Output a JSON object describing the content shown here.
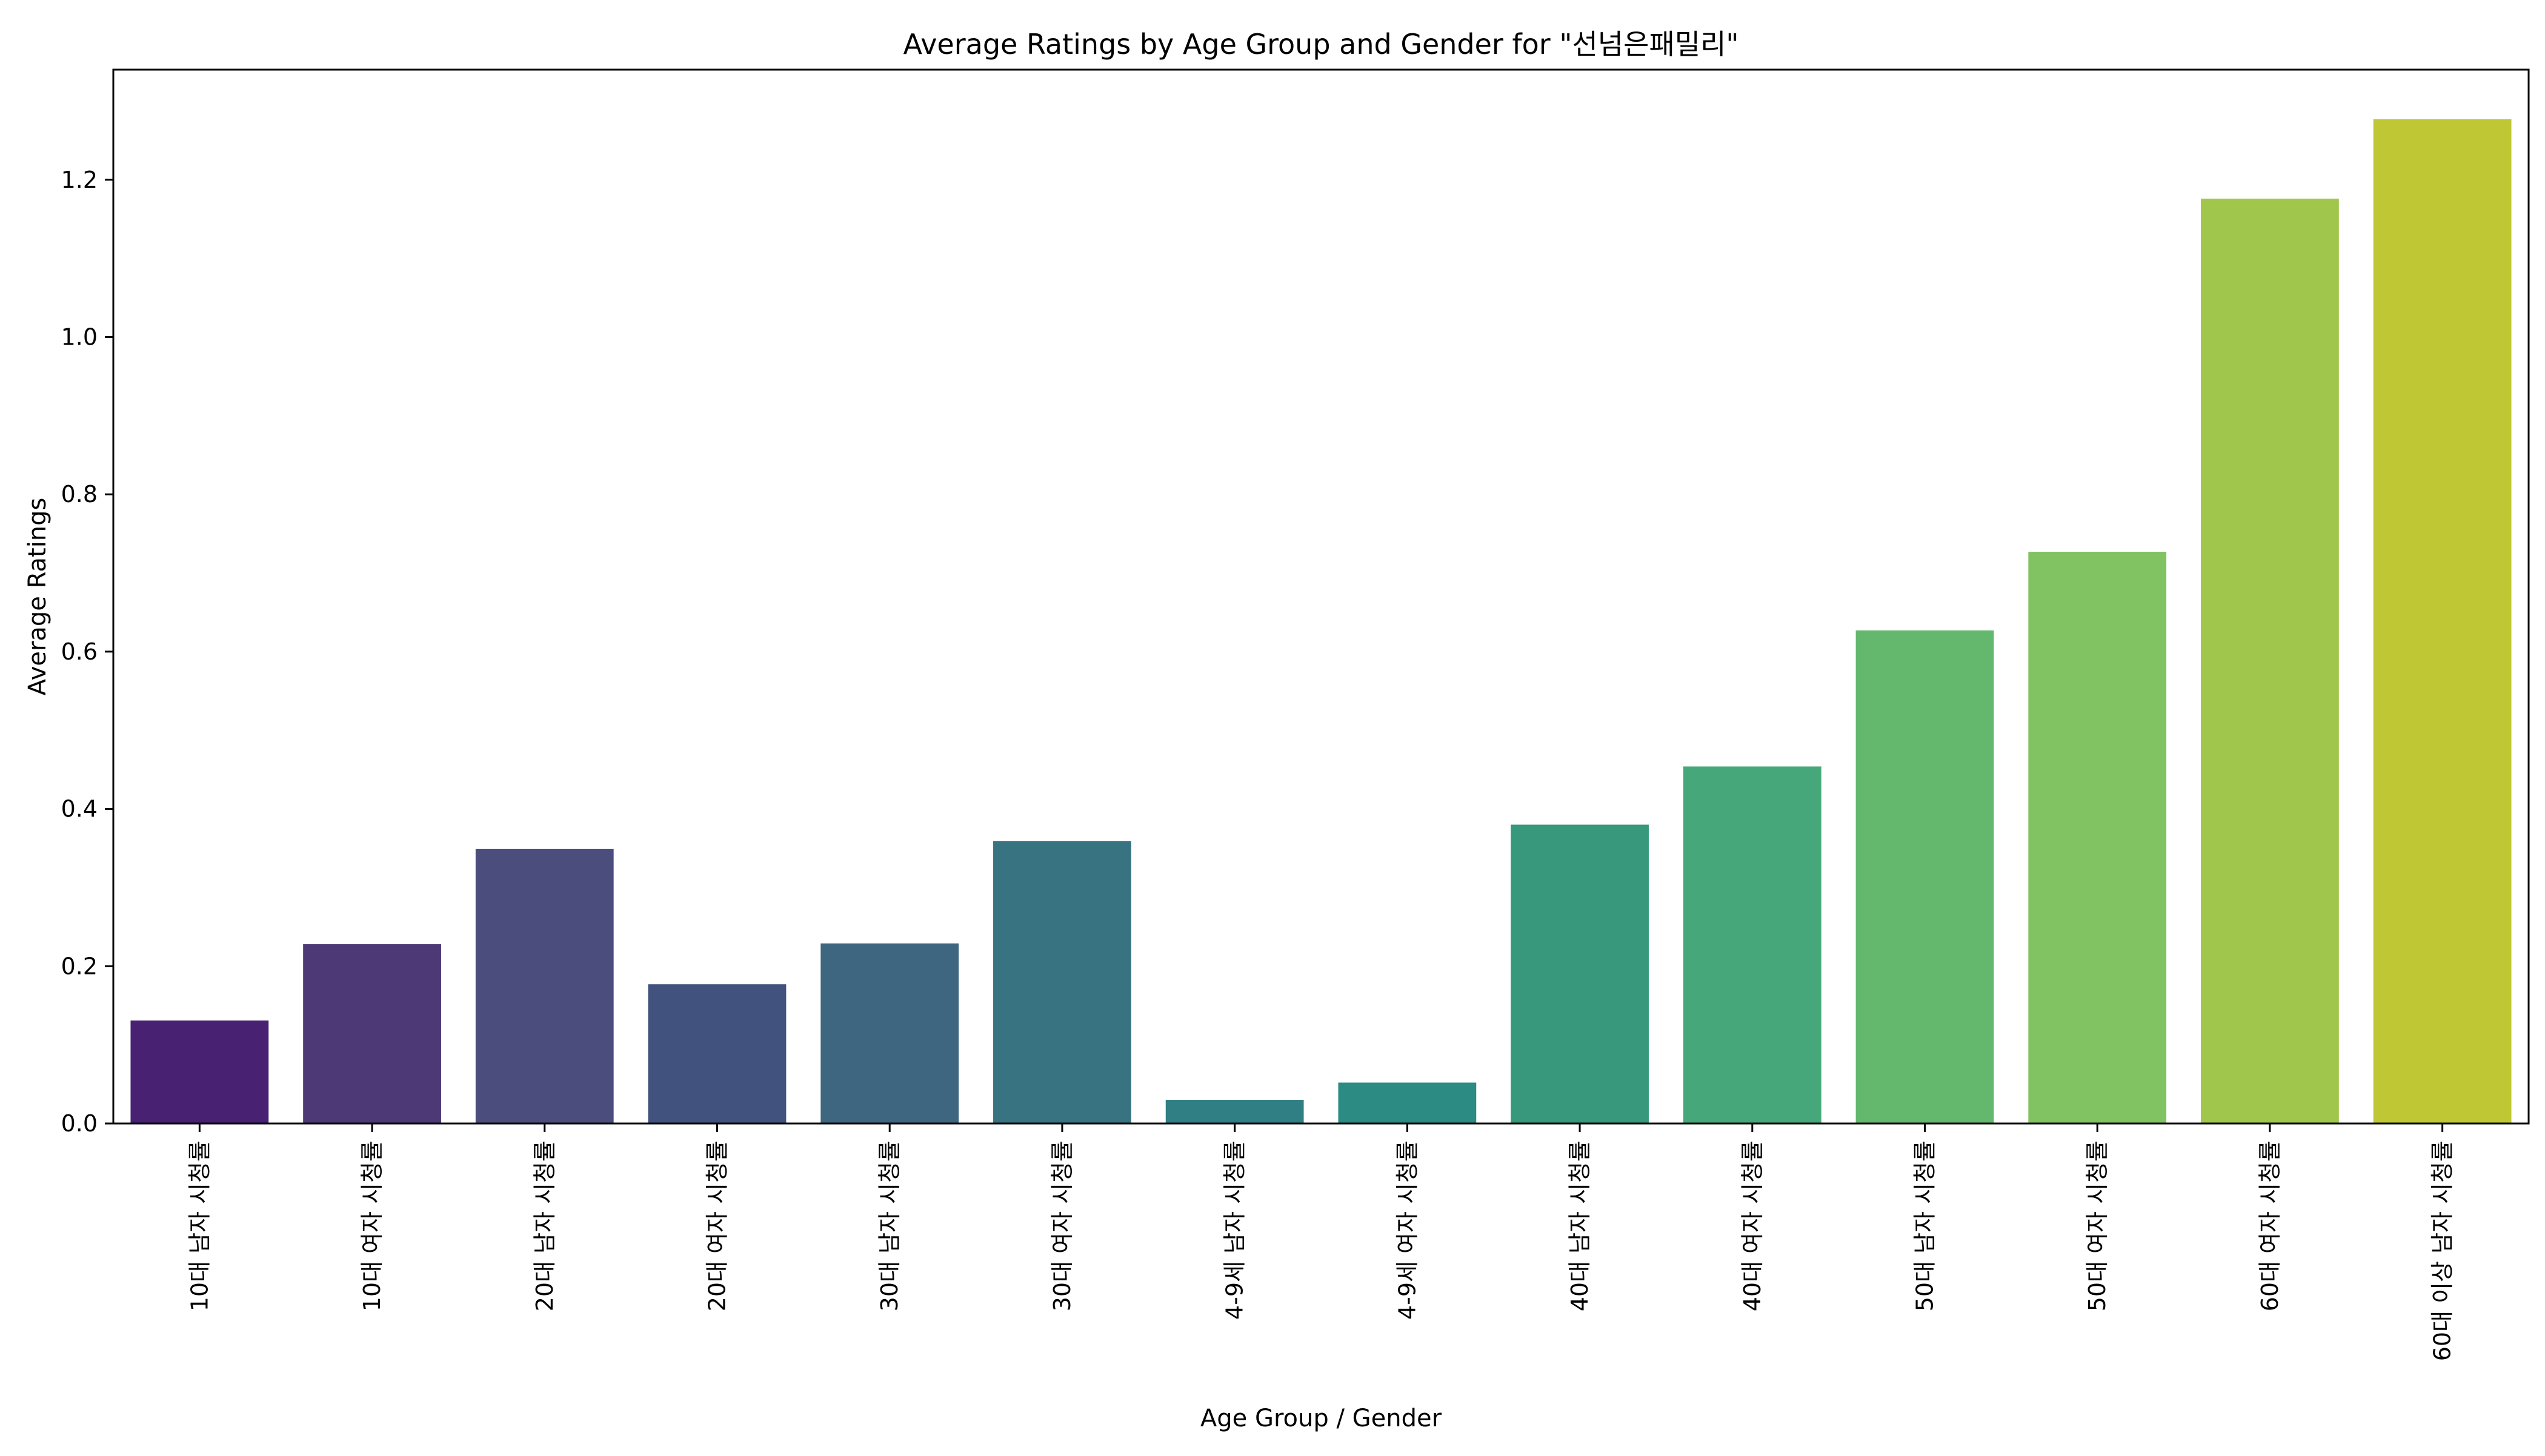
{
  "chart_data": {
    "type": "bar",
    "title": "Average Ratings by Age Group and Gender for \"선넘은패밀리\"",
    "xlabel": "Age Group / Gender",
    "ylabel": "Average Ratings",
    "categories": [
      "10대 남자 시청률",
      "10대 여자 시청률",
      "20대 남자 시청률",
      "20대 여자 시청률",
      "30대 남자 시청률",
      "30대 여자 시청률",
      "4-9세 남자 시청률",
      "4-9세 여자 시청률",
      "40대 남자 시청률",
      "40대 여자 시청률",
      "50대 남자 시청률",
      "50대 여자 시청률",
      "60대 여자 시청률",
      "60대 이상 남자 시청률"
    ],
    "values": [
      0.131,
      0.228,
      0.349,
      0.177,
      0.229,
      0.359,
      0.03,
      0.052,
      0.38,
      0.454,
      0.627,
      0.727,
      1.176,
      1.277
    ],
    "colors": [
      "#482173",
      "#4e3977",
      "#4b4d7d",
      "#41527e",
      "#3e6681",
      "#377381",
      "#2f7f84",
      "#2c8b83",
      "#37987b",
      "#46a87a",
      "#64b86e",
      "#81c362",
      "#a1c64c",
      "#bfc834"
    ],
    "yticks": [
      0.0,
      0.2,
      0.4,
      0.6,
      0.8,
      1.0,
      1.2
    ],
    "ytick_labels": [
      "0.0",
      "0.2",
      "0.4",
      "0.6",
      "0.8",
      "1.0",
      "1.2"
    ],
    "ylim": [
      0,
      1.34
    ],
    "grid": false,
    "legend": "none"
  }
}
